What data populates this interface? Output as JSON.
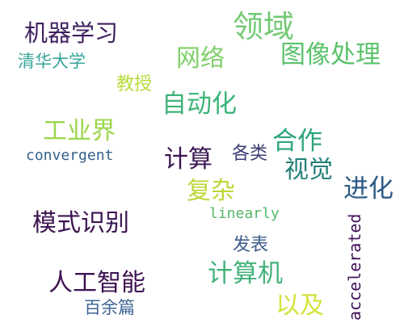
{
  "words": [
    {
      "text": "机器学习",
      "color": "#3f1f5e"
    },
    {
      "text": "领域",
      "color": "#74c976"
    },
    {
      "text": "清华大学",
      "color": "#3aa59a"
    },
    {
      "text": "网络",
      "color": "#7fd06a"
    },
    {
      "text": "图像处理",
      "color": "#5cc36c"
    },
    {
      "text": "教授",
      "color": "#b7dc3a"
    },
    {
      "text": "自动化",
      "color": "#3eb478"
    },
    {
      "text": "工业界",
      "color": "#9bd74a"
    },
    {
      "text": "convergent",
      "color": "#35628a"
    },
    {
      "text": "计算",
      "color": "#3b1652"
    },
    {
      "text": "各类",
      "color": "#3d3e74"
    },
    {
      "text": "合作",
      "color": "#2ea47e"
    },
    {
      "text": "视觉",
      "color": "#24807a"
    },
    {
      "text": "复杂",
      "color": "#bcd83a"
    },
    {
      "text": "进化",
      "color": "#2c5a86"
    },
    {
      "text": "linearly",
      "color": "#56b86b"
    },
    {
      "text": "模式识别",
      "color": "#3c1450"
    },
    {
      "text": "accelerated",
      "color": "#41135a"
    },
    {
      "text": "发表",
      "color": "#3e5d8b"
    },
    {
      "text": "计算机",
      "color": "#44b27a"
    },
    {
      "text": "人工智能",
      "color": "#3d1251"
    },
    {
      "text": "百余篇",
      "color": "#3f6694"
    },
    {
      "text": "以及",
      "color": "#d4e33d"
    }
  ]
}
